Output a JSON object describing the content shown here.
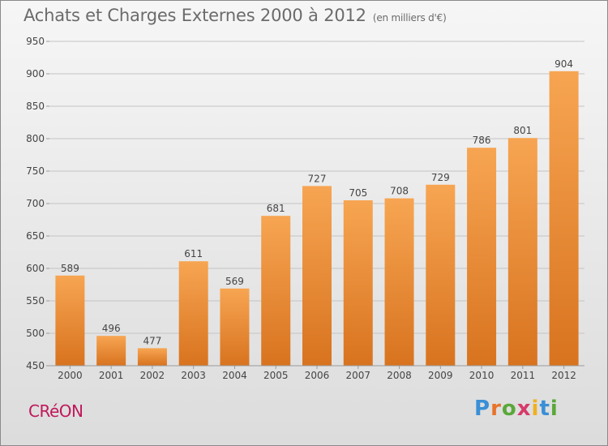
{
  "header": {
    "title": "Achats et Charges Externes 2000 à 2012",
    "subtitle": "(en milliers d'€)"
  },
  "footer": {
    "commune": "CRéON",
    "logo_letters": [
      {
        "ch": "P",
        "color": "#3a8fd6"
      },
      {
        "ch": "r",
        "color": "#e8732a"
      },
      {
        "ch": "o",
        "color": "#5aa83a"
      },
      {
        "ch": "x",
        "color": "#d63a6a"
      },
      {
        "ch": "i",
        "color": "#f0b020"
      },
      {
        "ch": "t",
        "color": "#3a8fd6"
      },
      {
        "ch": "i",
        "color": "#5aa83a"
      }
    ]
  },
  "chart_data": {
    "type": "bar",
    "categories": [
      "2000",
      "2001",
      "2002",
      "2003",
      "2004",
      "2005",
      "2006",
      "2007",
      "2008",
      "2009",
      "2010",
      "2011",
      "2012"
    ],
    "values": [
      589,
      496,
      477,
      611,
      569,
      681,
      727,
      705,
      708,
      729,
      786,
      801,
      904
    ],
    "ylim": [
      450,
      950
    ],
    "yticks": [
      450,
      500,
      550,
      600,
      650,
      700,
      750,
      800,
      850,
      900,
      950
    ],
    "grid": true,
    "bar_color": "#f29a45"
  }
}
